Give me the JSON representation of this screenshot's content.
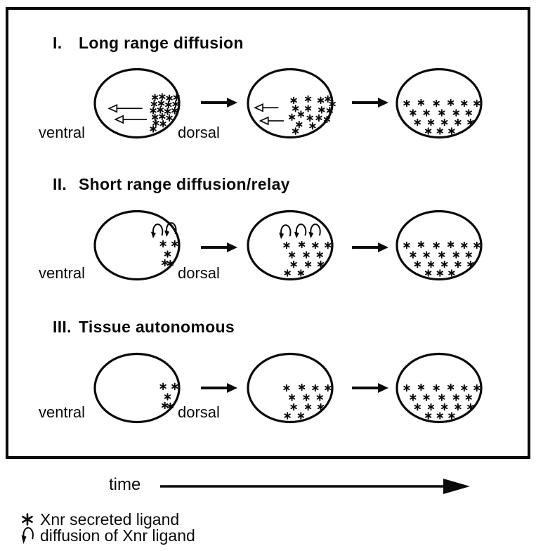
{
  "colors": {
    "ink": "#0a0a0a",
    "paper": "#ffffff"
  },
  "time_label": "time",
  "legend": [
    {
      "symbol": "star-icon",
      "label": "Xnr secreted ligand"
    },
    {
      "symbol": "diffusion-arrow-icon",
      "label": "diffusion of Xnr ligand"
    }
  ],
  "rows": [
    {
      "numeral": "I.",
      "title": "Long range diffusion",
      "ventral_label": "ventral",
      "dorsal_label": "dorsal",
      "embryos": [
        {
          "stars": [
            [
              70,
              42
            ],
            [
              78,
              41
            ],
            [
              86,
              43
            ],
            [
              94,
              42
            ],
            [
              69,
              51
            ],
            [
              77,
              50
            ],
            [
              85,
              52
            ],
            [
              93,
              51
            ],
            [
              68,
              60
            ],
            [
              76,
              59
            ],
            [
              84,
              61
            ],
            [
              92,
              60
            ],
            [
              70,
              69
            ],
            [
              78,
              68
            ],
            [
              86,
              70
            ],
            [
              71,
              77
            ],
            [
              79,
              78
            ],
            [
              68,
              85
            ]
          ],
          "hollow_arrows": [
            {
              "tip": 19,
              "tail": 56,
              "y": 57
            },
            {
              "tip": 26,
              "tail": 61,
              "y": 72
            }
          ],
          "hook_arrows": []
        },
        {
          "stars": [
            [
              54,
              46
            ],
            [
              70,
              44
            ],
            [
              84,
              46
            ],
            [
              92,
              44
            ],
            [
              97,
              51
            ],
            [
              56,
              57
            ],
            [
              70,
              57
            ],
            [
              85,
              59
            ],
            [
              94,
              60
            ],
            [
              52,
              69
            ],
            [
              62,
              65
            ],
            [
              72,
              70
            ],
            [
              82,
              70
            ],
            [
              91,
              72
            ],
            [
              60,
              79
            ],
            [
              75,
              81
            ],
            [
              56,
              88
            ]
          ],
          "hollow_arrows": [
            {
              "tip": 11,
              "tail": 37,
              "y": 56
            },
            {
              "tip": 17,
              "tail": 43,
              "y": 74
            }
          ],
          "hook_arrows": []
        },
        {
          "stars": [
            [
              14,
              50
            ],
            [
              30,
              49
            ],
            [
              47,
              50
            ],
            [
              63,
              49
            ],
            [
              78,
              50
            ],
            [
              92,
              50
            ],
            [
              21,
              63
            ],
            [
              36,
              63
            ],
            [
              53,
              63
            ],
            [
              69,
              63
            ],
            [
              83,
              63
            ],
            [
              26,
              76
            ],
            [
              41,
              76
            ],
            [
              56,
              76
            ],
            [
              71,
              76
            ],
            [
              85,
              76
            ],
            [
              38,
              88
            ],
            [
              51,
              88
            ],
            [
              64,
              88
            ]
          ],
          "hollow_arrows": [],
          "hook_arrows": []
        }
      ]
    },
    {
      "numeral": "II.",
      "title": "Short range diffusion/relay",
      "ventral_label": "ventral",
      "dorsal_label": "dorsal",
      "embryos": [
        {
          "stars": [
            [
              79,
              48
            ],
            [
              92,
              48
            ],
            [
              84,
              62
            ],
            [
              81,
              74
            ],
            [
              87,
              75
            ]
          ],
          "hollow_arrows": [],
          "hook_arrows": [
            [
              73,
              29
            ],
            [
              88,
              27
            ]
          ]
        },
        {
          "stars": [
            [
              46,
              50
            ],
            [
              63,
              49
            ],
            [
              78,
              50
            ],
            [
              92,
              50
            ],
            [
              52,
              63
            ],
            [
              68,
              63
            ],
            [
              83,
              63
            ],
            [
              54,
              76
            ],
            [
              70,
              76
            ],
            [
              84,
              76
            ],
            [
              47,
              88
            ],
            [
              62,
              88
            ]
          ],
          "hollow_arrows": [],
          "hook_arrows": [
            [
              45,
              30
            ],
            [
              62,
              29
            ],
            [
              78,
              29
            ]
          ]
        },
        {
          "stars": [
            [
              14,
              50
            ],
            [
              30,
              49
            ],
            [
              47,
              50
            ],
            [
              63,
              49
            ],
            [
              78,
              50
            ],
            [
              92,
              50
            ],
            [
              21,
              63
            ],
            [
              36,
              63
            ],
            [
              53,
              63
            ],
            [
              69,
              63
            ],
            [
              83,
              63
            ],
            [
              26,
              76
            ],
            [
              41,
              76
            ],
            [
              56,
              76
            ],
            [
              71,
              76
            ],
            [
              85,
              76
            ],
            [
              38,
              88
            ],
            [
              51,
              88
            ],
            [
              64,
              88
            ]
          ],
          "hollow_arrows": [],
          "hook_arrows": []
        }
      ]
    },
    {
      "numeral": "III.",
      "title": "Tissue autonomous",
      "ventral_label": "ventral",
      "dorsal_label": "dorsal",
      "embryos": [
        {
          "stars": [
            [
              79,
              48
            ],
            [
              92,
              48
            ],
            [
              84,
              62
            ],
            [
              81,
              74
            ],
            [
              87,
              75
            ]
          ],
          "hollow_arrows": [],
          "hook_arrows": []
        },
        {
          "stars": [
            [
              46,
              50
            ],
            [
              63,
              49
            ],
            [
              78,
              50
            ],
            [
              92,
              50
            ],
            [
              52,
              63
            ],
            [
              68,
              63
            ],
            [
              83,
              63
            ],
            [
              54,
              76
            ],
            [
              70,
              76
            ],
            [
              84,
              76
            ],
            [
              47,
              88
            ],
            [
              62,
              88
            ]
          ],
          "hollow_arrows": [],
          "hook_arrows": []
        },
        {
          "stars": [
            [
              14,
              50
            ],
            [
              30,
              49
            ],
            [
              47,
              50
            ],
            [
              63,
              49
            ],
            [
              78,
              50
            ],
            [
              92,
              50
            ],
            [
              21,
              63
            ],
            [
              36,
              63
            ],
            [
              53,
              63
            ],
            [
              69,
              63
            ],
            [
              83,
              63
            ],
            [
              26,
              76
            ],
            [
              41,
              76
            ],
            [
              56,
              76
            ],
            [
              71,
              76
            ],
            [
              85,
              76
            ],
            [
              38,
              88
            ],
            [
              51,
              88
            ],
            [
              64,
              88
            ]
          ],
          "hollow_arrows": [],
          "hook_arrows": []
        }
      ]
    }
  ]
}
